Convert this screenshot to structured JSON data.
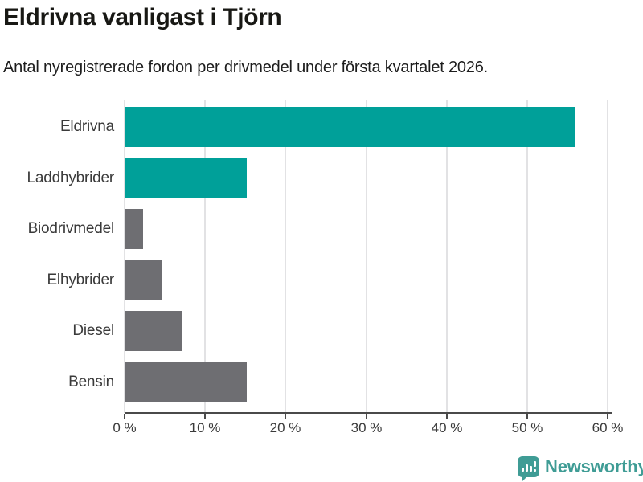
{
  "header": {
    "title": "Eldrivna vanligast i Tjörn",
    "subtitle": "Antal nyregistrerade fordon per drivmedel under första kvartalet 2026."
  },
  "chart_data": {
    "type": "bar",
    "orientation": "horizontal",
    "title": "Eldrivna vanligast i Tjörn",
    "subtitle": "Antal nyregistrerade fordon per drivmedel under första kvartalet 2026.",
    "categories": [
      "Eldrivna",
      "Laddhybrider",
      "Biodrivmedel",
      "Elhybrider",
      "Diesel",
      "Bensin"
    ],
    "values": [
      55.9,
      15.2,
      2.3,
      4.7,
      7.1,
      15.2
    ],
    "unit": "%",
    "bar_colors": [
      "#00A099",
      "#00A099",
      "#6E6E72",
      "#6E6E72",
      "#6E6E72",
      "#6E6E72"
    ],
    "highlight_color": "#00A099",
    "default_color": "#6E6E72",
    "xlabel": "",
    "ylabel": "",
    "xlim": [
      0,
      60
    ],
    "xticks": {
      "values": [
        0,
        10,
        20,
        30,
        40,
        50,
        60
      ],
      "labels": [
        "0 %",
        "10 %",
        "20 %",
        "30 %",
        "40 %",
        "50 %",
        "60 %"
      ]
    },
    "grid": "vertical-gridlines-on",
    "legend": "none"
  },
  "footer": {
    "brand": "Newsworthy",
    "logo_color": "#3F9C95",
    "logo_icon": "newsworthy-speech-bubble-chart-icon"
  }
}
